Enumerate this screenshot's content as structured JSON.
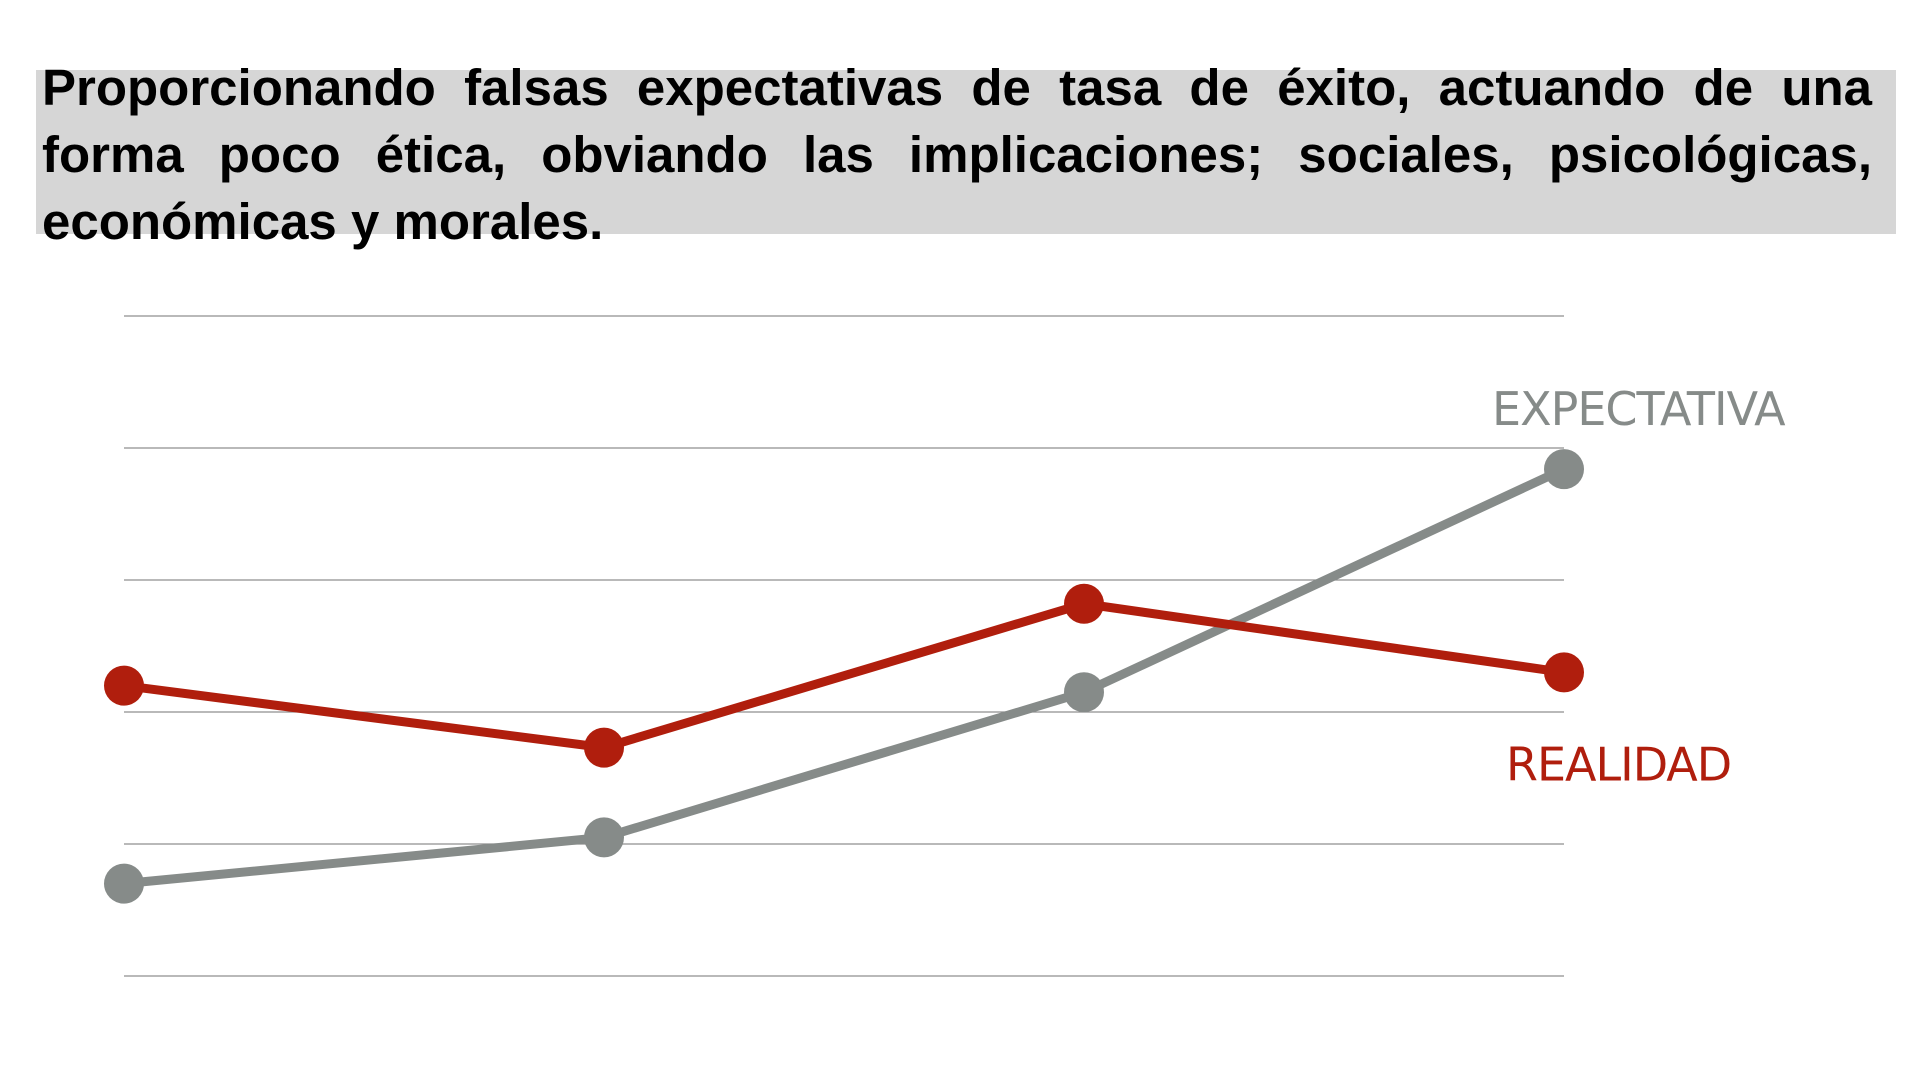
{
  "heading": {
    "text": "Proporcionando falsas expectativas de tasa de éxito, actuando de una forma poco ética, obviando las implicaciones; sociales, psicológicas, económicas y morales.",
    "highlight_color": "#d6d6d6"
  },
  "chart_data": {
    "type": "line",
    "title": "",
    "xlabel": "",
    "ylabel": "",
    "categories": [
      "",
      "",
      "",
      ""
    ],
    "ylim": [
      0,
      5
    ],
    "grid": true,
    "gridlines": [
      0,
      1,
      2,
      3,
      4,
      5
    ],
    "legend": "inline labels at right end of each series",
    "series": [
      {
        "name": "EXPECTATIVA",
        "color": "#868b89",
        "values": [
          0.7,
          1.05,
          2.15,
          3.84
        ]
      },
      {
        "name": "REALIDAD",
        "color": "#b01e0d",
        "values": [
          2.2,
          1.73,
          2.82,
          2.3
        ]
      }
    ]
  }
}
